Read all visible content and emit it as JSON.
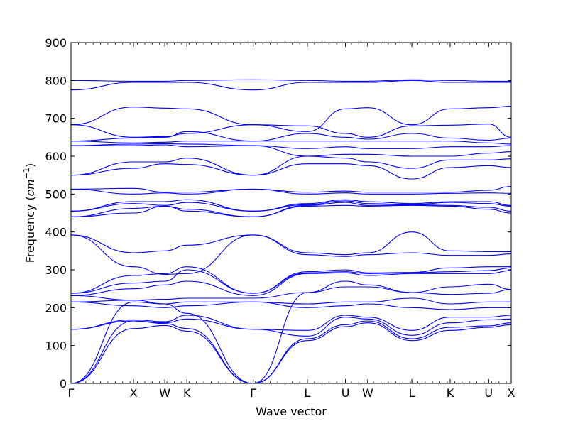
{
  "chart_data": {
    "type": "line",
    "title": "",
    "xlabel": "Wave vector",
    "ylabel_main": "Frequency (",
    "ylabel_unit": "cm",
    "ylabel_exp": "−1",
    "ylabel_close": ")",
    "ylim": [
      0,
      900
    ],
    "yticks": [
      0,
      100,
      200,
      300,
      400,
      500,
      600,
      700,
      800,
      900
    ],
    "grid": false,
    "line_color": "#0000ff",
    "path_points": [
      {
        "label": "Γ",
        "x": 0.0
      },
      {
        "label": "X",
        "x": 1.0
      },
      {
        "label": "W",
        "x": 1.5
      },
      {
        "label": "K",
        "x": 1.854
      },
      {
        "label": "Γ",
        "x": 2.914
      },
      {
        "label": "L",
        "x": 3.78
      },
      {
        "label": "U",
        "x": 4.39
      },
      {
        "label": "W",
        "x": 4.745
      },
      {
        "label": "L",
        "x": 5.452
      },
      {
        "label": "K",
        "x": 6.064
      },
      {
        "label": "U",
        "x": 6.68
      },
      {
        "label": "X",
        "x": 7.04
      }
    ],
    "series": [
      {
        "values": [
          0,
          145,
          153,
          138,
          0,
          113,
          150,
          160,
          113,
          140,
          148,
          155
        ]
      },
      {
        "values": [
          0,
          165,
          158,
          145,
          0,
          118,
          155,
          165,
          118,
          148,
          152,
          160
        ]
      },
      {
        "values": [
          0,
          215,
          210,
          185,
          0,
          240,
          270,
          260,
          240,
          255,
          262,
          248
        ]
      },
      {
        "values": [
          143,
          165,
          160,
          170,
          143,
          125,
          175,
          170,
          127,
          160,
          168,
          170
        ]
      },
      {
        "values": [
          143,
          168,
          163,
          180,
          143,
          140,
          180,
          175,
          140,
          175,
          175,
          180
        ]
      },
      {
        "values": [
          215,
          205,
          200,
          205,
          215,
          200,
          205,
          210,
          200,
          195,
          200,
          200
        ]
      },
      {
        "values": [
          215,
          220,
          210,
          215,
          215,
          210,
          215,
          215,
          225,
          210,
          215,
          215
        ]
      },
      {
        "values": [
          232,
          220,
          222,
          225,
          225,
          240,
          255,
          255,
          240,
          235,
          238,
          248
        ]
      },
      {
        "values": [
          232,
          250,
          260,
          270,
          232,
          290,
          292,
          285,
          290,
          290,
          290,
          298
        ]
      },
      {
        "values": [
          238,
          265,
          270,
          300,
          238,
          292,
          295,
          290,
          292,
          295,
          298,
          305
        ]
      },
      {
        "values": [
          238,
          285,
          290,
          308,
          238,
          295,
          300,
          292,
          293,
          305,
          308,
          308
        ]
      },
      {
        "values": [
          392,
          345,
          350,
          365,
          392,
          340,
          335,
          340,
          345,
          338,
          338,
          342
        ]
      },
      {
        "values": [
          392,
          308,
          288,
          290,
          392,
          345,
          340,
          345,
          400,
          350,
          348,
          348
        ]
      },
      {
        "values": [
          440,
          450,
          468,
          455,
          440,
          468,
          470,
          468,
          470,
          468,
          460,
          450
        ]
      },
      {
        "values": [
          440,
          462,
          468,
          460,
          440,
          470,
          478,
          470,
          472,
          470,
          465,
          455
        ]
      },
      {
        "values": [
          455,
          475,
          470,
          478,
          455,
          472,
          482,
          475,
          472,
          478,
          475,
          468
        ]
      },
      {
        "values": [
          455,
          480,
          480,
          485,
          455,
          475,
          485,
          480,
          475,
          480,
          480,
          470
        ]
      },
      {
        "values": [
          513,
          500,
          503,
          500,
          513,
          500,
          503,
          500,
          500,
          502,
          503,
          502
        ]
      },
      {
        "values": [
          513,
          515,
          505,
          505,
          513,
          505,
          508,
          505,
          505,
          505,
          510,
          520
        ]
      },
      {
        "values": [
          550,
          568,
          580,
          578,
          550,
          580,
          580,
          575,
          540,
          570,
          575,
          570
        ]
      },
      {
        "values": [
          550,
          585,
          585,
          595,
          550,
          600,
          595,
          585,
          568,
          590,
          590,
          593
        ]
      },
      {
        "values": [
          628,
          628,
          630,
          625,
          628,
          600,
          605,
          605,
          600,
          600,
          608,
          612
        ]
      },
      {
        "values": [
          628,
          632,
          633,
          632,
          628,
          620,
          625,
          620,
          620,
          625,
          625,
          628
        ]
      },
      {
        "values": [
          640,
          635,
          637,
          640,
          640,
          640,
          640,
          640,
          640,
          640,
          635,
          632
        ]
      },
      {
        "values": [
          640,
          648,
          650,
          665,
          640,
          660,
          650,
          645,
          660,
          648,
          642,
          648
        ]
      },
      {
        "values": [
          683,
          730,
          727,
          725,
          683,
          665,
          725,
          728,
          683,
          725,
          728,
          732
        ]
      },
      {
        "values": [
          683,
          650,
          652,
          660,
          683,
          680,
          660,
          650,
          680,
          682,
          685,
          650
        ]
      },
      {
        "values": [
          775,
          795,
          795,
          795,
          775,
          795,
          795,
          795,
          800,
          795,
          795,
          795
        ]
      },
      {
        "values": [
          800,
          798,
          798,
          800,
          802,
          800,
          798,
          798,
          802,
          800,
          798,
          798
        ]
      }
    ]
  }
}
